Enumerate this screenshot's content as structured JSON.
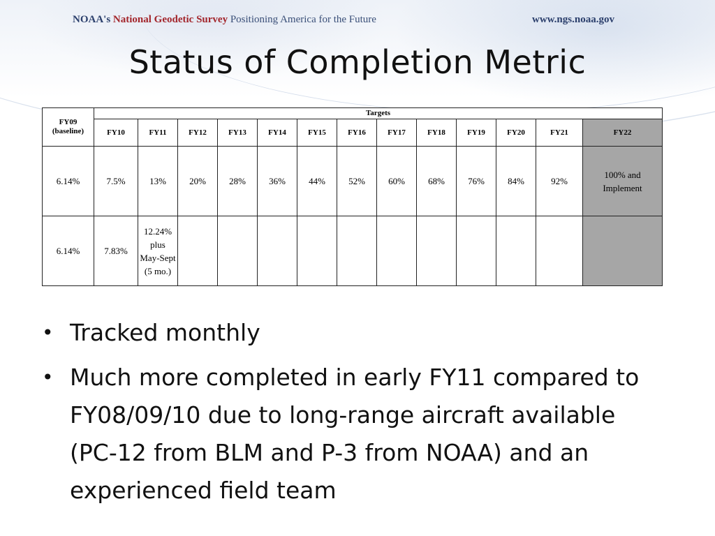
{
  "header": {
    "org": "NOAA's",
    "name": "National Geodetic Survey",
    "tagline": "Positioning America for the Future",
    "url": "www.ngs.noaa.gov"
  },
  "title": "Status of Completion Metric",
  "table": {
    "baseline_label": "FY09 (baseline)",
    "targets_label": "Targets",
    "years": [
      "FY10",
      "FY11",
      "FY12",
      "FY13",
      "FY14",
      "FY15",
      "FY16",
      "FY17",
      "FY18",
      "FY19",
      "FY20",
      "FY21",
      "FY22"
    ],
    "baseline_target": "6.14%",
    "targets": [
      "7.5%",
      "13%",
      "20%",
      "28%",
      "36%",
      "44%",
      "52%",
      "60%",
      "68%",
      "76%",
      "84%",
      "92%",
      "100% and Implement"
    ],
    "baseline_actual": "6.14%",
    "actuals": [
      "7.83%",
      "12.24% plus May-Sept (5 mo.)",
      "",
      "",
      "",
      "",
      "",
      "",
      "",
      "",
      "",
      "",
      ""
    ],
    "highlight_color": "#a6a6a6"
  },
  "bullets": [
    "Tracked monthly",
    "Much more completed in early FY11 compared to FY08/09/10 due to long-range aircraft available (PC-12 from BLM and P-3 from NOAA) and an experienced field team"
  ]
}
